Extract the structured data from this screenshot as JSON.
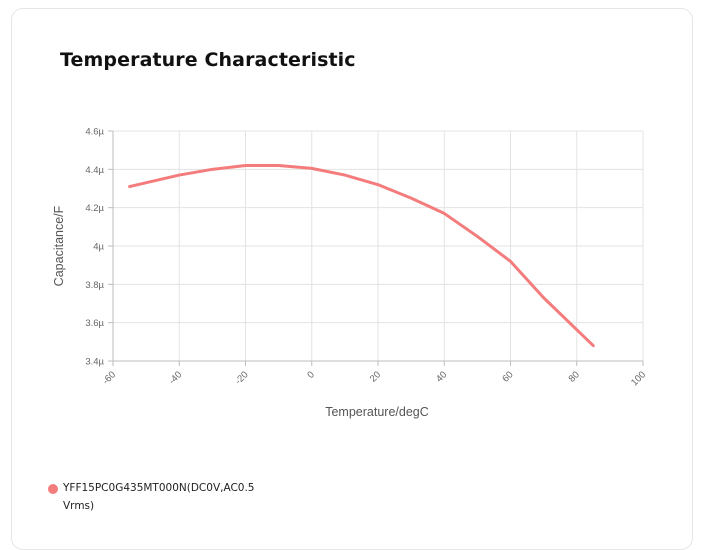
{
  "page": {
    "title": "Temperature Characteristic"
  },
  "chart_data": {
    "type": "line",
    "xlabel": "Temperature/degC",
    "ylabel": "Capacitance/F",
    "xlim": [
      -60,
      100
    ],
    "ylim": [
      3.4e-06,
      4.6e-06
    ],
    "x_ticks": [
      -60,
      -40,
      -20,
      0,
      20,
      40,
      60,
      80,
      100
    ],
    "x_tick_labels": [
      "-60",
      "-40",
      "-20",
      "0",
      "20",
      "40",
      "60",
      "80",
      "100"
    ],
    "y_ticks": [
      3.4e-06,
      3.6e-06,
      3.8e-06,
      4e-06,
      4.2e-06,
      4.4e-06,
      4.6e-06
    ],
    "y_tick_labels": [
      "3.4µ",
      "3.6µ",
      "3.8µ",
      "4µ",
      "4.2µ",
      "4.4µ",
      "4.6µ"
    ],
    "grid": true,
    "legend_position": "bottom-left",
    "series": [
      {
        "name": "YFF15PC0G435MT000N(DC0V,AC0.5Vrms)",
        "color": "#f47c7c",
        "x": [
          -55,
          -40,
          -30,
          -20,
          -10,
          0,
          10,
          20,
          30,
          40,
          50,
          60,
          70,
          85
        ],
        "y": [
          4.31e-06,
          4.37e-06,
          4.4e-06,
          4.42e-06,
          4.42e-06,
          4.405e-06,
          4.37e-06,
          4.32e-06,
          4.25e-06,
          4.17e-06,
          4.05e-06,
          3.92e-06,
          3.73e-06,
          3.48e-06
        ]
      }
    ]
  }
}
